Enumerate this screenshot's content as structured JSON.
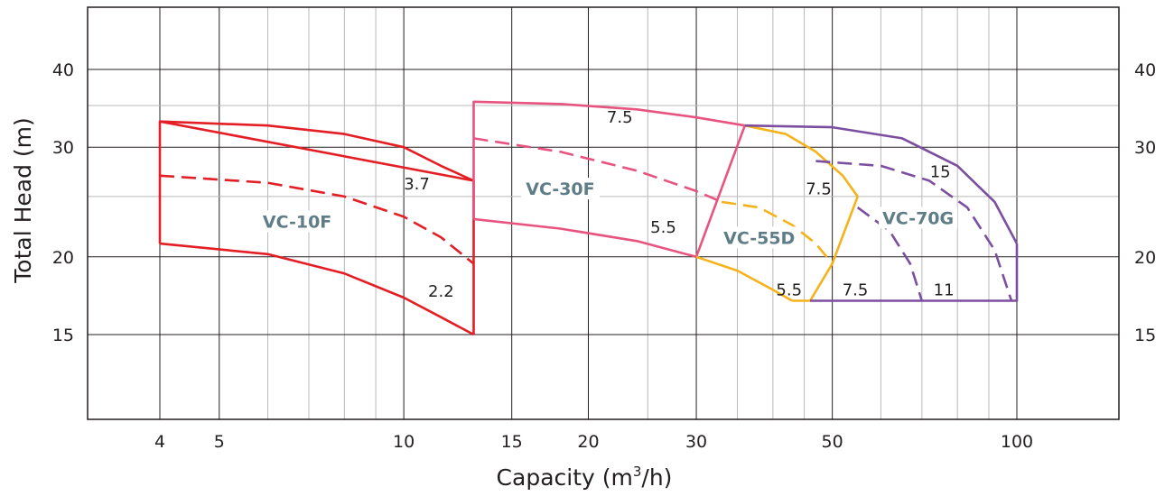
{
  "chart_data": {
    "type": "line",
    "xlabel": "Capacity (m³/h)",
    "xlabel_parts": {
      "prefix": "Capacity (m",
      "sup": "3",
      "suffix": "/h)"
    },
    "ylabel": "Total Head (m)",
    "x_scale": "log",
    "y_scale": "log",
    "xlim": [
      3.2,
      100
    ],
    "ylim": [
      12,
      50
    ],
    "x_ticks": [
      4,
      5,
      10,
      15,
      20,
      30,
      50,
      100
    ],
    "x_tick_labels": [
      "4",
      "5",
      "10",
      "15",
      "20",
      "30",
      "50",
      "100"
    ],
    "x_minor_grid": [
      6,
      7,
      8,
      9,
      25,
      35,
      40,
      45,
      60,
      70,
      80,
      90
    ],
    "y_ticks": [
      15,
      20,
      30,
      40
    ],
    "y_tick_labels": [
      "15",
      "20",
      "30",
      "40"
    ],
    "y_minor_grid": [
      25,
      35
    ],
    "grid": true,
    "series": [
      {
        "name": "VC-10F",
        "color": "#e31e24",
        "role": "frame",
        "dash": false,
        "x": [
          4,
          4,
          4,
          13,
          13,
          13
        ],
        "y": [
          21,
          27,
          33,
          26.5,
          19.5,
          15
        ]
      },
      {
        "name": "VC-10F",
        "label": "3.7",
        "color": "#e31e24",
        "role": "curve",
        "dash": false,
        "x": [
          4,
          6,
          8,
          10,
          11.5,
          13
        ],
        "y": [
          33,
          32.5,
          31.5,
          30,
          28,
          26.5
        ]
      },
      {
        "name": "VC-10F",
        "label": "3.7",
        "color": "#e31e24",
        "role": "curve",
        "dash": true,
        "x": [
          4,
          6,
          8,
          10,
          11.5,
          13
        ],
        "y": [
          27,
          26.3,
          25,
          23.2,
          21.5,
          19.5
        ]
      },
      {
        "name": "VC-10F",
        "label": "2.2",
        "color": "#e31e24",
        "role": "curve",
        "dash": false,
        "x": [
          4,
          6,
          8,
          10,
          11.5,
          13
        ],
        "y": [
          21,
          20.2,
          18.8,
          17.2,
          16,
          15
        ]
      },
      {
        "name": "VC-30F",
        "color": "#e75480",
        "role": "frame",
        "dash": false,
        "x": [
          13,
          13,
          13,
          13
        ],
        "y": [
          23,
          31,
          35.5,
          23
        ]
      },
      {
        "name": "VC-30F",
        "label": "7.5",
        "color": "#e75480",
        "role": "curve",
        "dash": false,
        "x": [
          13,
          18,
          24,
          30,
          36
        ],
        "y": [
          35.5,
          35.2,
          34.5,
          33.5,
          32.5
        ]
      },
      {
        "name": "VC-30F",
        "label": "7.5",
        "color": "#e75480",
        "role": "curve",
        "dash": true,
        "x": [
          13,
          18,
          24,
          30,
          33
        ],
        "y": [
          31,
          29.5,
          27.5,
          25.5,
          24.5
        ]
      },
      {
        "name": "VC-30F",
        "label": "5.5",
        "color": "#e75480",
        "role": "curve",
        "dash": false,
        "x": [
          13,
          18,
          24,
          30
        ],
        "y": [
          23,
          22.2,
          21.2,
          20
        ]
      },
      {
        "name": "VC-30F",
        "color": "#e75480",
        "role": "frame",
        "dash": false,
        "x": [
          30,
          36
        ],
        "y": [
          20,
          32.5
        ]
      },
      {
        "name": "VC-55D",
        "label": "7.5",
        "color": "#f5b21a",
        "role": "curve",
        "dash": false,
        "x": [
          36,
          42,
          47,
          52,
          55
        ],
        "y": [
          32.5,
          31.5,
          29.5,
          27,
          25
        ]
      },
      {
        "name": "VC-55D",
        "label": "7.5",
        "color": "#f5b21a",
        "role": "curve",
        "dash": true,
        "x": [
          33,
          38,
          43,
          47,
          50
        ],
        "y": [
          24.5,
          24,
          22.5,
          21,
          19.5
        ]
      },
      {
        "name": "VC-55D",
        "label": "5.5",
        "color": "#f5b21a",
        "role": "curve",
        "dash": false,
        "x": [
          30,
          35,
          40,
          43
        ],
        "y": [
          20,
          19,
          17.7,
          17
        ]
      },
      {
        "name": "VC-55D",
        "color": "#f5b21a",
        "role": "frame",
        "dash": false,
        "x": [
          43,
          46,
          50,
          55
        ],
        "y": [
          17,
          17,
          19.5,
          25
        ]
      },
      {
        "name": "VC-70G",
        "label": "15",
        "color": "#7c4ea0",
        "role": "curve",
        "dash": false,
        "x": [
          36,
          50,
          65,
          80,
          92,
          100
        ],
        "y": [
          32.5,
          32.3,
          31,
          28,
          24.5,
          21
        ]
      },
      {
        "name": "VC-70G",
        "label": "15",
        "color": "#7c4ea0",
        "role": "curve",
        "dash": true,
        "x": [
          47,
          60,
          72,
          83,
          92,
          98
        ],
        "y": [
          28.5,
          28,
          26.5,
          24,
          20.5,
          17
        ]
      },
      {
        "name": "VC-70G",
        "label": "11",
        "color": "#7c4ea0",
        "role": "curve",
        "dash": true,
        "x": [
          55,
          62,
          67,
          70
        ],
        "y": [
          24,
          22,
          19.5,
          17
        ]
      },
      {
        "name": "VC-70G",
        "color": "#7c4ea0",
        "role": "frame",
        "dash": false,
        "x": [
          46,
          100,
          100
        ],
        "y": [
          17,
          17,
          21
        ]
      }
    ],
    "annotations": [
      {
        "text": "VC-10F",
        "kind": "model",
        "x": 6.7,
        "y": 22.5
      },
      {
        "text": "3.7",
        "kind": "power",
        "x": 10.5,
        "y": 26.2
      },
      {
        "text": "2.2",
        "kind": "power",
        "x": 11.5,
        "y": 17.6
      },
      {
        "text": "VC-30F",
        "kind": "model",
        "x": 18,
        "y": 25.4
      },
      {
        "text": "7.5",
        "kind": "power",
        "x": 22.5,
        "y": 33.5
      },
      {
        "text": "5.5",
        "kind": "power",
        "x": 26.5,
        "y": 22.3
      },
      {
        "text": "VC-55D",
        "kind": "model",
        "x": 38,
        "y": 21.2
      },
      {
        "text": "7.5",
        "kind": "power",
        "x": 47.5,
        "y": 25.7
      },
      {
        "text": "5.5",
        "kind": "power",
        "x": 42.5,
        "y": 17.7
      },
      {
        "text": "7.5",
        "kind": "power",
        "x": 54.5,
        "y": 17.7
      },
      {
        "text": "VC-70G",
        "kind": "model",
        "x": 69,
        "y": 22.8
      },
      {
        "text": "15",
        "kind": "power",
        "x": 75,
        "y": 27.4
      },
      {
        "text": "11",
        "kind": "power",
        "x": 76,
        "y": 17.7
      }
    ]
  }
}
